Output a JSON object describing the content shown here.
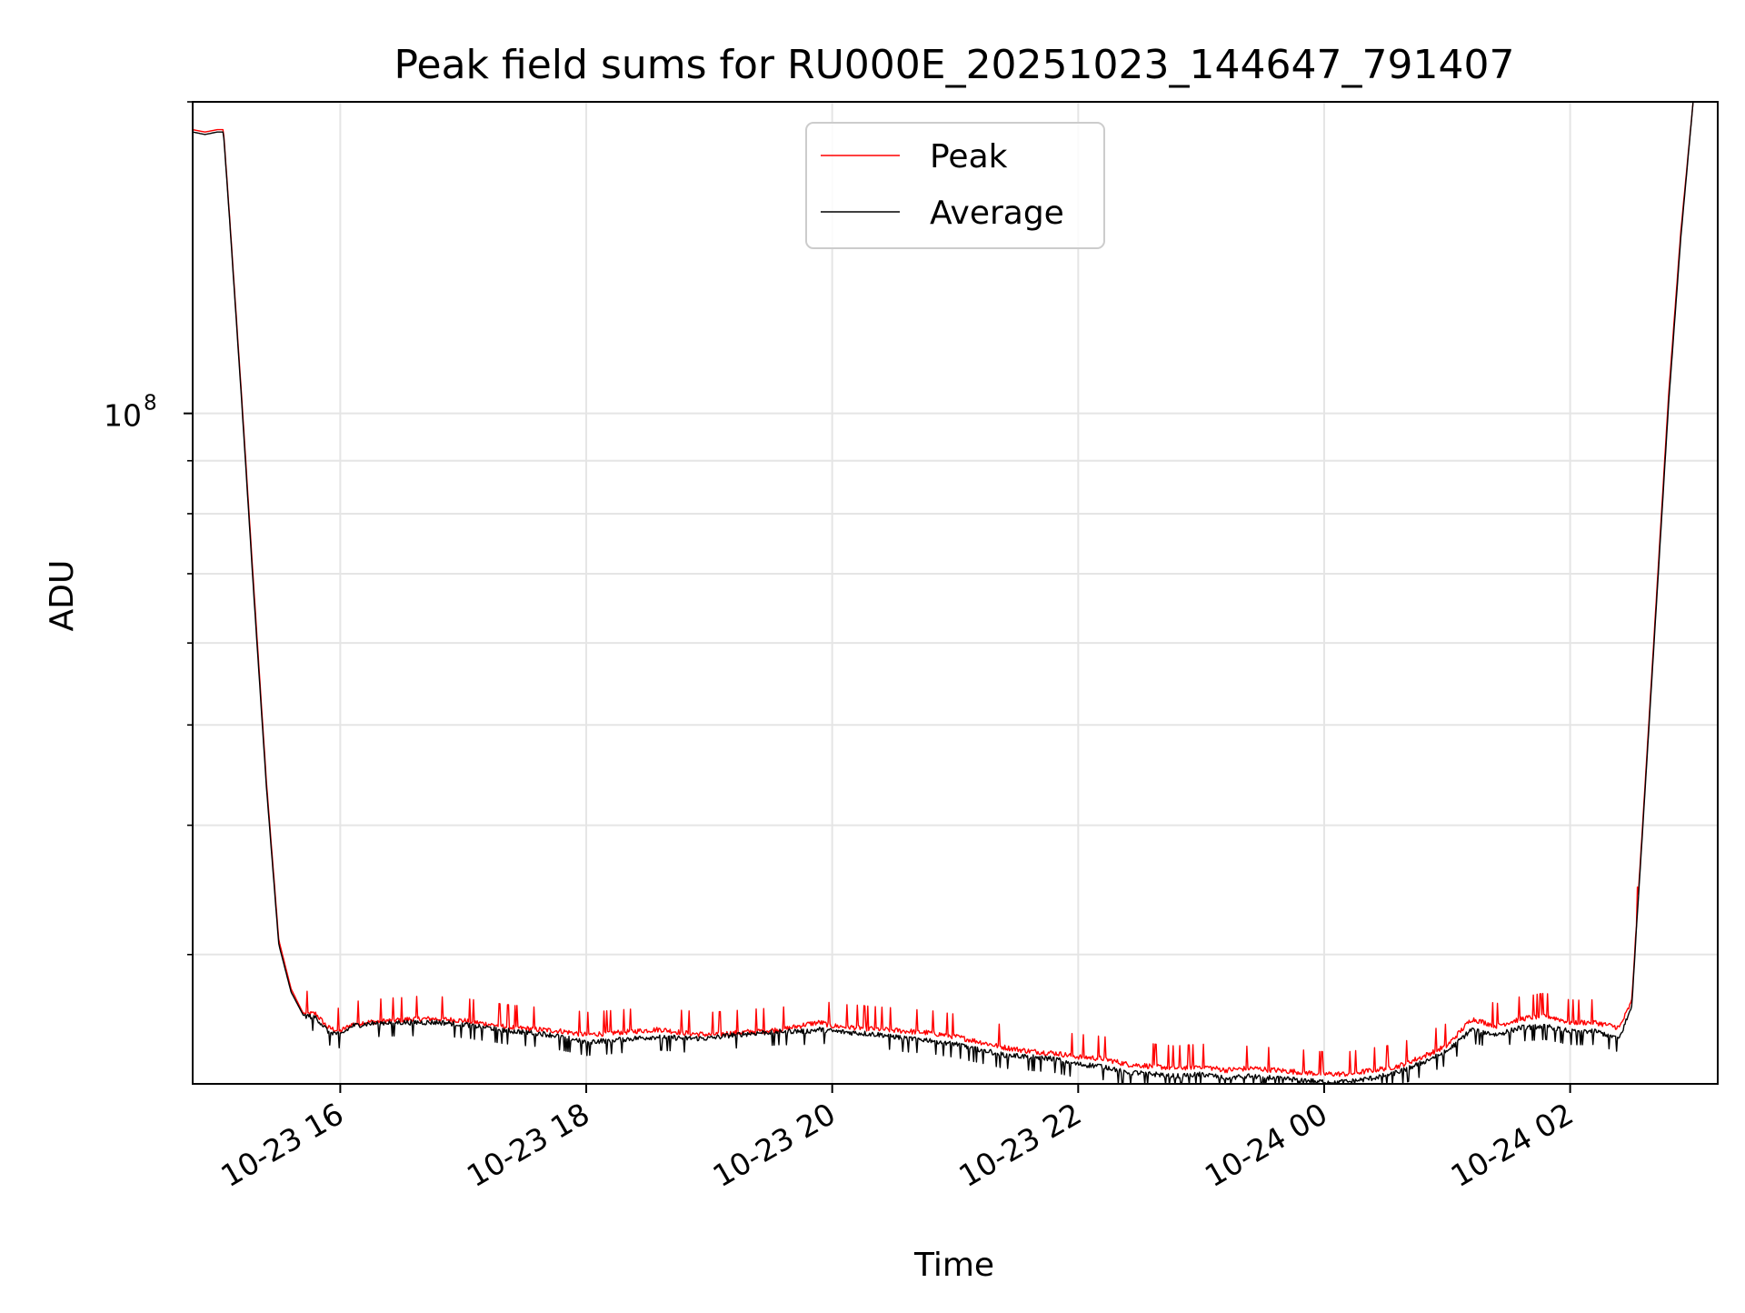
{
  "chart_data": {
    "type": "line",
    "title": "Peak field sums for RU000E_20251023_144647_791407",
    "xlabel": "Time",
    "ylabel": "ADU",
    "yscale": "log",
    "ylim": [
      22500000,
      200000000
    ],
    "xlim_hours": [
      14.8,
      27.2
    ],
    "grid": true,
    "legend_position": "top-center",
    "x_ticks": [
      {
        "hour": 16,
        "label": "10-23 16"
      },
      {
        "hour": 18,
        "label": "10-23 18"
      },
      {
        "hour": 20,
        "label": "10-23 20"
      },
      {
        "hour": 22,
        "label": "10-23 22"
      },
      {
        "hour": 24,
        "label": "10-24 00"
      },
      {
        "hour": 26,
        "label": "10-24 02"
      }
    ],
    "y_major_ticks": [
      {
        "value": 100000000,
        "label": "10",
        "exponent": "8"
      }
    ],
    "y_minor_ticks": [
      30000000,
      40000000,
      50000000,
      60000000,
      70000000,
      80000000,
      90000000,
      200000000
    ],
    "series": [
      {
        "name": "Peak",
        "color": "#ff0000",
        "x_hours": [
          14.8,
          14.9,
          15.0,
          15.05,
          15.1,
          15.2,
          15.3,
          15.4,
          15.5,
          15.6,
          15.7,
          15.8,
          15.9,
          16.0,
          16.1,
          16.2,
          16.4,
          16.6,
          16.8,
          17.0,
          17.2,
          17.4,
          17.6,
          17.8,
          18.0,
          18.2,
          18.4,
          18.6,
          18.8,
          19.0,
          19.2,
          19.4,
          19.6,
          19.8,
          19.9,
          20.0,
          20.2,
          20.4,
          20.6,
          20.8,
          21.0,
          21.2,
          21.4,
          21.6,
          21.8,
          22.0,
          22.2,
          22.4,
          22.6,
          22.8,
          23.0,
          23.2,
          23.4,
          23.6,
          23.8,
          24.0,
          24.2,
          24.4,
          24.6,
          24.8,
          25.0,
          25.2,
          25.4,
          25.6,
          25.8,
          26.0,
          26.2,
          26.4,
          26.5,
          26.6,
          26.7,
          26.8,
          26.9,
          27.0,
          27.1
        ],
        "values": [
          188000000,
          187000000,
          188000000,
          188000000,
          155000000,
          103000000,
          67000000,
          44000000,
          31000000,
          27800000,
          26300000,
          26300000,
          25500000,
          25300000,
          25700000,
          25800000,
          25900000,
          26000000,
          26000000,
          25900000,
          25700000,
          25500000,
          25400000,
          25300000,
          25100000,
          25200000,
          25300000,
          25400000,
          25200000,
          25100000,
          25200000,
          25300000,
          25400000,
          25700000,
          25800000,
          25600000,
          25500000,
          25400000,
          25300000,
          25200000,
          25000000,
          24700000,
          24400000,
          24200000,
          24100000,
          23900000,
          23800000,
          23500000,
          23400000,
          23300000,
          23400000,
          23200000,
          23300000,
          23200000,
          23100000,
          23000000,
          23000000,
          23200000,
          23400000,
          23900000,
          24500000,
          26000000,
          25600000,
          26000000,
          26200000,
          25800000,
          25800000,
          25500000,
          27000000,
          42000000,
          66000000,
          104000000,
          150000000,
          200000000,
          200000000
        ]
      },
      {
        "name": "Average",
        "color": "#000000",
        "x_hours": [
          14.8,
          14.9,
          15.0,
          15.05,
          15.1,
          15.2,
          15.3,
          15.4,
          15.5,
          15.6,
          15.7,
          15.8,
          15.9,
          16.0,
          16.1,
          16.2,
          16.4,
          16.6,
          16.8,
          17.0,
          17.2,
          17.4,
          17.6,
          17.8,
          18.0,
          18.2,
          18.4,
          18.6,
          18.8,
          19.0,
          19.2,
          19.4,
          19.6,
          19.8,
          19.9,
          20.0,
          20.2,
          20.4,
          20.6,
          20.8,
          21.0,
          21.2,
          21.4,
          21.6,
          21.8,
          22.0,
          22.2,
          22.4,
          22.6,
          22.8,
          23.0,
          23.2,
          23.4,
          23.6,
          23.8,
          24.0,
          24.2,
          24.4,
          24.6,
          24.8,
          25.0,
          25.2,
          25.4,
          25.6,
          25.8,
          26.0,
          26.2,
          26.4,
          26.5,
          26.6,
          26.7,
          26.8,
          26.9,
          27.0,
          27.1
        ],
        "values": [
          187000000,
          186000000,
          187000000,
          187000000,
          154000000,
          102000000,
          66000000,
          43500000,
          30700000,
          27600000,
          26200000,
          26100000,
          25300000,
          25100000,
          25600000,
          25700000,
          25800000,
          25800000,
          25800000,
          25700000,
          25500000,
          25300000,
          25200000,
          25000000,
          24700000,
          24800000,
          24900000,
          25000000,
          24900000,
          24900000,
          25100000,
          25200000,
          25300000,
          25300000,
          25400000,
          25300000,
          25200000,
          25100000,
          24900000,
          24800000,
          24600000,
          24300000,
          24000000,
          23900000,
          23800000,
          23500000,
          23400000,
          23100000,
          23000000,
          22900000,
          23000000,
          22800000,
          22900000,
          22800000,
          22700000,
          22600000,
          22600000,
          22800000,
          23100000,
          23600000,
          24200000,
          25400000,
          25100000,
          25500000,
          25600000,
          25300000,
          25300000,
          24900000,
          26700000,
          41500000,
          65000000,
          102000000,
          148000000,
          200000000,
          200000000
        ]
      }
    ]
  }
}
